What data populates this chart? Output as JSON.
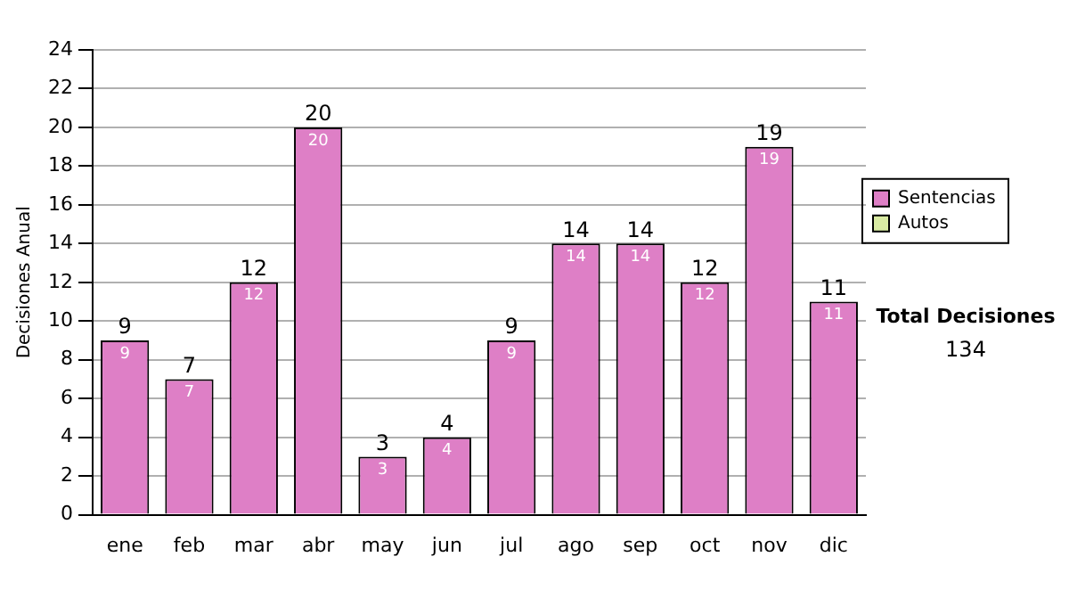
{
  "chart_data": {
    "type": "bar",
    "ylabel": "Decisiones Anual",
    "categories": [
      "ene",
      "feb",
      "mar",
      "abr",
      "may",
      "jun",
      "jul",
      "ago",
      "sep",
      "oct",
      "nov",
      "dic"
    ],
    "series": [
      {
        "name": "Sentencias",
        "color": "#de7fc6",
        "values": [
          9,
          7,
          12,
          20,
          3,
          4,
          9,
          14,
          14,
          12,
          19,
          11
        ],
        "value_labels": [
          "9",
          "7",
          "12",
          "20",
          "3",
          "4",
          "9",
          "14",
          "14",
          "12",
          "19",
          "11"
        ]
      },
      {
        "name": "Autos",
        "color": "#d9eba3",
        "values": [
          0,
          0,
          0,
          0,
          0,
          0,
          0,
          0,
          0,
          0,
          0,
          0
        ]
      }
    ],
    "stacked": true,
    "totals": [
      "9",
      "7",
      "12",
      "20",
      "3",
      "4",
      "9",
      "14",
      "14",
      "12",
      "19",
      "11"
    ],
    "ylim": [
      0,
      24
    ],
    "yticks": [
      0,
      2,
      4,
      6,
      8,
      10,
      12,
      14,
      16,
      18,
      20,
      22,
      24
    ],
    "grid": "y",
    "legend": "right",
    "annotations": [
      "Total Decisiones",
      "134"
    ]
  }
}
